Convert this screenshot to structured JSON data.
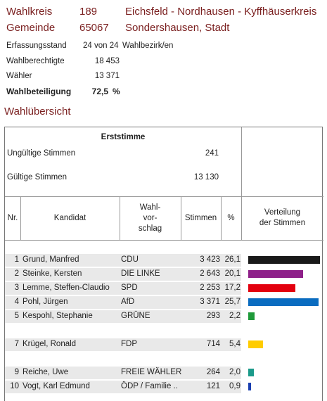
{
  "header": {
    "wahlkreis_label": "Wahlkreis",
    "wahlkreis_nr": "189",
    "wahlkreis_name": "Eichsfeld - Nordhausen - Kyffhäuserkreis",
    "gemeinde_label": "Gemeinde",
    "gemeinde_nr": "65067",
    "gemeinde_name": "Sondershausen, Stadt"
  },
  "stats": {
    "erfassung_label": "Erfassungsstand",
    "erfassung_value": "24 von 24",
    "erfassung_unit": "Wahlbezirk/en",
    "berechtigte_label": "Wahlberechtigte",
    "berechtigte_value": "18 453",
    "waehler_label": "Wähler",
    "waehler_value": "13 371",
    "beteiligung_label": "Wahlbeteiligung",
    "beteiligung_value": "72,5",
    "beteiligung_unit": "%"
  },
  "section_title": "Wahlübersicht",
  "table": {
    "erststimme_label": "Erststimme",
    "ungueltig_label": "Ungültige Stimmen",
    "ungueltig_value": "241",
    "gueltig_label": "Gültige Stimmen",
    "gueltig_value": "13 130",
    "columns": {
      "nr": "Nr.",
      "kandidat": "Kandidat",
      "vorschlag_1": "Wahl-",
      "vorschlag_2": "vor-",
      "vorschlag_3": "schlag",
      "stimmen": "Stimmen",
      "pct": "%",
      "verteilung_1": "Verteilung",
      "verteilung_2": "der Stimmen"
    },
    "rows": [
      {
        "nr": "1",
        "name": "Grund, Manfred",
        "party": "CDU",
        "votes": "3 423",
        "pct": "26,1",
        "share": 26.1,
        "color": "#1a1a1a"
      },
      {
        "nr": "2",
        "name": "Steinke, Kersten",
        "party": "DIE LINKE",
        "votes": "2 643",
        "pct": "20,1",
        "share": 20.1,
        "color": "#8e2089"
      },
      {
        "nr": "3",
        "name": "Lemme, Steffen-Claudio",
        "party": "SPD",
        "votes": "2 253",
        "pct": "17,2",
        "share": 17.2,
        "color": "#e3000f"
      },
      {
        "nr": "4",
        "name": "Pohl, Jürgen",
        "party": "AfD",
        "votes": "3 371",
        "pct": "25,7",
        "share": 25.7,
        "color": "#0a6cc0"
      },
      {
        "nr": "5",
        "name": "Kespohl, Stephanie",
        "party": "GRÜNE",
        "votes": "293",
        "pct": "2,2",
        "share": 2.2,
        "color": "#1f9a3a"
      },
      {
        "nr": "",
        "name": "",
        "party": "",
        "votes": "",
        "pct": "",
        "share": 0,
        "color": ""
      },
      {
        "nr": "7",
        "name": "Krügel, Ronald",
        "party": "FDP",
        "votes": "714",
        "pct": "5,4",
        "share": 5.4,
        "color": "#ffcc00"
      },
      {
        "nr": "",
        "name": "",
        "party": "",
        "votes": "",
        "pct": "",
        "share": 0,
        "color": ""
      },
      {
        "nr": "9",
        "name": "Reiche, Uwe",
        "party": "FREIE WÄHLER",
        "votes": "264",
        "pct": "2,0",
        "share": 2.0,
        "color": "#1b9a8a"
      },
      {
        "nr": "10",
        "name": "Vogt, Karl Edmund",
        "party": "ÖDP / Familie ..",
        "votes": "121",
        "pct": "0,9",
        "share": 0.9,
        "color": "#1a3fb0"
      }
    ]
  }
}
